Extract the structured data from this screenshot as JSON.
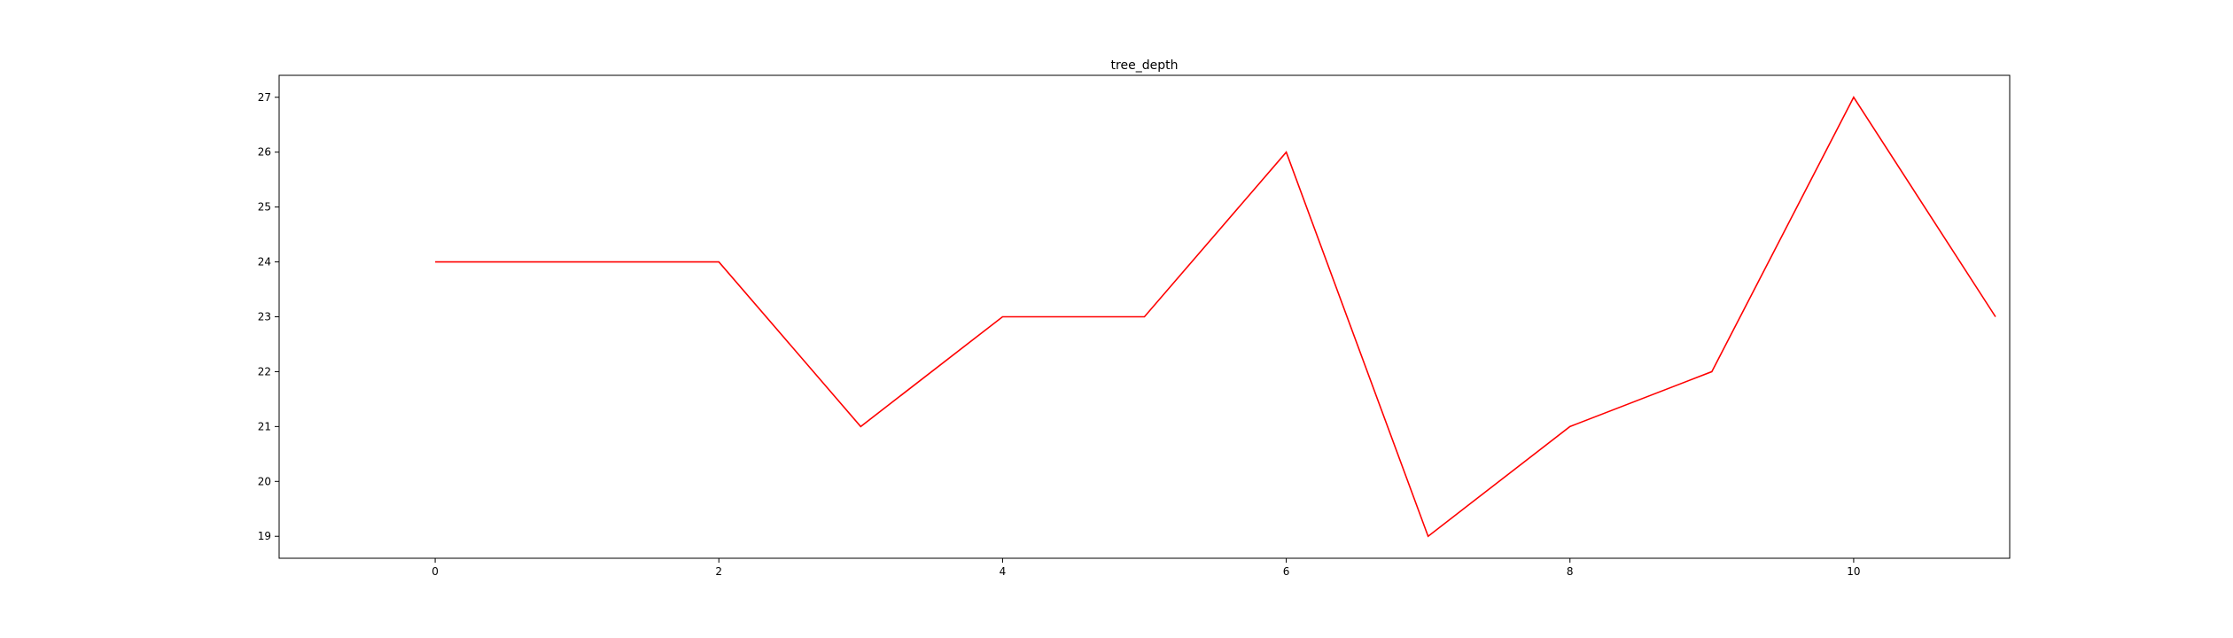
{
  "chart_data": {
    "type": "line",
    "title": "tree_depth",
    "xlabel": "",
    "ylabel": "",
    "x": [
      0,
      1,
      2,
      3,
      4,
      5,
      6,
      7,
      8,
      9,
      10,
      11
    ],
    "series": [
      {
        "values": [
          24,
          24,
          24,
          21,
          23,
          23,
          26,
          19,
          21,
          22,
          27,
          23
        ],
        "color": "#ff0000"
      }
    ],
    "xticks": [
      0,
      2,
      4,
      6,
      8,
      10
    ],
    "yticks": [
      19,
      20,
      21,
      22,
      23,
      24,
      25,
      26,
      27
    ],
    "xlim": [
      -1.1,
      11.1
    ],
    "ylim": [
      18.6,
      27.4
    ],
    "grid": false,
    "legend": "none"
  }
}
